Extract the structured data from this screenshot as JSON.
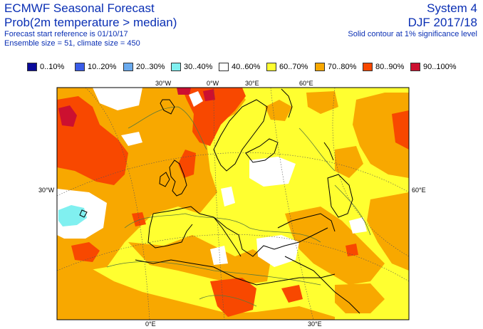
{
  "header": {
    "title": "ECMWF Seasonal Forecast",
    "subtitle": "Prob(2m temperature > median)",
    "start_ref": "Forecast start reference is 01/10/17",
    "ensemble": "Ensemble size = 51, climate size = 450",
    "system": "System 4",
    "season": "DJF 2017/18",
    "note": "Solid contour at 1% significance level"
  },
  "legend": [
    {
      "label": "0..10%",
      "color": "#0a0a9a"
    },
    {
      "label": "10..20%",
      "color": "#3a5ce8"
    },
    {
      "label": "20..30%",
      "color": "#6aaaee"
    },
    {
      "label": "30..40%",
      "color": "#80f0f0"
    },
    {
      "label": "40..60%",
      "color": "#ffffff"
    },
    {
      "label": "60..70%",
      "color": "#ffff30"
    },
    {
      "label": "70..80%",
      "color": "#f8a800"
    },
    {
      "label": "80..90%",
      "color": "#f84800"
    },
    {
      "label": "90..100%",
      "color": "#cc1030"
    }
  ],
  "map_labels": {
    "lon_30w_top": "30°W",
    "lon_0_top": "0°W",
    "lon_30e_top": "30°E",
    "lon_60e_top": "60°E",
    "lat_30w_left": "30°W",
    "lat_60e_right": "60°E",
    "lon_0_bottom": "0°E",
    "lon_30e_bottom": "30°E"
  }
}
